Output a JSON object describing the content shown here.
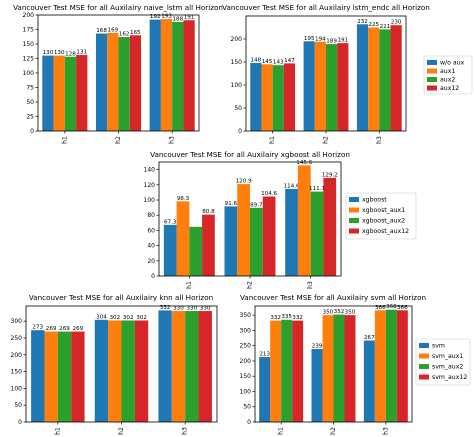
{
  "colors": {
    "blue": "#1f77b4",
    "orange": "#ff7f0e",
    "green": "#2ca02c",
    "red": "#d62728"
  },
  "chart_data": [
    {
      "type": "bar",
      "title": "Vancouver Test MSE for all Auxilairy naive_lstm all Horizon",
      "categories": [
        "h1",
        "h2",
        "h3"
      ],
      "series": [
        {
          "values": [
            130,
            168,
            192
          ]
        },
        {
          "values": [
            130,
            169,
            193
          ]
        },
        {
          "values": [
            128,
            162,
            188
          ]
        },
        {
          "values": [
            131,
            165,
            191
          ]
        }
      ],
      "value_labels": [
        [
          "130",
          "168",
          "192"
        ],
        [
          "130",
          "169",
          "193"
        ],
        [
          "128",
          "162",
          "188"
        ],
        [
          "131",
          "165",
          "191"
        ]
      ],
      "ylim": [
        0,
        200
      ],
      "yticks": [
        0,
        25,
        50,
        75,
        100,
        125,
        150,
        175,
        200
      ],
      "legend": null
    },
    {
      "type": "bar",
      "title": "Vancouver Test MSE for all Auxilairy lstm_endc all Horizon",
      "categories": [
        "h1",
        "h2",
        "h3"
      ],
      "series": [
        {
          "name": "w/o aux",
          "values": [
            148,
            195,
            232
          ]
        },
        {
          "name": "aux1",
          "values": [
            145,
            194,
            225
          ]
        },
        {
          "name": "aux2",
          "values": [
            143,
            189,
            221
          ]
        },
        {
          "name": "aux12",
          "values": [
            147,
            191,
            230
          ]
        }
      ],
      "value_labels": [
        [
          "148",
          "195",
          "232"
        ],
        [
          "145",
          "194",
          "225"
        ],
        [
          "143",
          "189",
          "221"
        ],
        [
          "147",
          "191",
          "230"
        ]
      ],
      "ylim": [
        0,
        250
      ],
      "yticks": [
        0,
        50,
        100,
        150,
        200
      ],
      "legend": "right"
    },
    {
      "type": "bar",
      "title": "Vancouver Test MSE for all Auxilairy xgboost all Horizon",
      "categories": [
        "h1",
        "h2",
        "h3"
      ],
      "series": [
        {
          "name": "xgboost",
          "values": [
            67.3,
            91.6,
            114.6
          ]
        },
        {
          "name": "xgboost_aux1",
          "values": [
            98.3,
            120.9,
            145.6
          ]
        },
        {
          "name": "xgboost_aux2",
          "values": [
            64.7,
            89.7,
            111.1
          ]
        },
        {
          "name": "xgboost_aux12",
          "values": [
            80.8,
            104.6,
            129.2
          ]
        }
      ],
      "value_labels": [
        [
          "67.3",
          "91.6",
          "114.6"
        ],
        [
          "98.3",
          "120.9",
          "145.6"
        ],
        [
          "",
          "89.7",
          "111.1"
        ],
        [
          "80.8",
          "104.6",
          "129.2"
        ]
      ],
      "ylim": [
        0,
        150
      ],
      "yticks": [
        0,
        20,
        40,
        60,
        80,
        100,
        120,
        140
      ],
      "legend": "right"
    },
    {
      "type": "bar",
      "title": "Vancouver Test MSE for all Auxilairy knn all Horizon",
      "categories": [
        "h1",
        "h2",
        "h3"
      ],
      "series": [
        {
          "values": [
            273,
            304,
            332
          ]
        },
        {
          "values": [
            269,
            302,
            330
          ]
        },
        {
          "values": [
            269,
            302,
            330
          ]
        },
        {
          "values": [
            269,
            302,
            330
          ]
        }
      ],
      "value_labels": [
        [
          "273",
          "304",
          "332"
        ],
        [
          "269",
          "302",
          "330"
        ],
        [
          "269",
          "302",
          "330"
        ],
        [
          "269",
          "302",
          "330"
        ]
      ],
      "ylim": [
        0,
        345
      ],
      "yticks": [
        0,
        50,
        100,
        150,
        200,
        250,
        300
      ],
      "legend": null
    },
    {
      "type": "bar",
      "title": "Vancouver Test MSE for all Auxilairy svm all Horizon",
      "categories": [
        "h1",
        "h2",
        "h3"
      ],
      "series": [
        {
          "name": "svm",
          "values": [
            213,
            239,
            267
          ]
        },
        {
          "name": "svm_aux1",
          "values": [
            332,
            350,
            366
          ]
        },
        {
          "name": "svm_aux2",
          "values": [
            335,
            352,
            368
          ]
        },
        {
          "name": "svm_aux12",
          "values": [
            332,
            350,
            366
          ]
        }
      ],
      "value_labels": [
        [
          "213",
          "239",
          "267"
        ],
        [
          "332",
          "350",
          "366"
        ],
        [
          "335",
          "352",
          "368"
        ],
        [
          "332",
          "350",
          "366"
        ]
      ],
      "ylim": [
        0,
        380
      ],
      "yticks": [
        0,
        50,
        100,
        150,
        200,
        250,
        300,
        350
      ],
      "legend": "right"
    }
  ]
}
